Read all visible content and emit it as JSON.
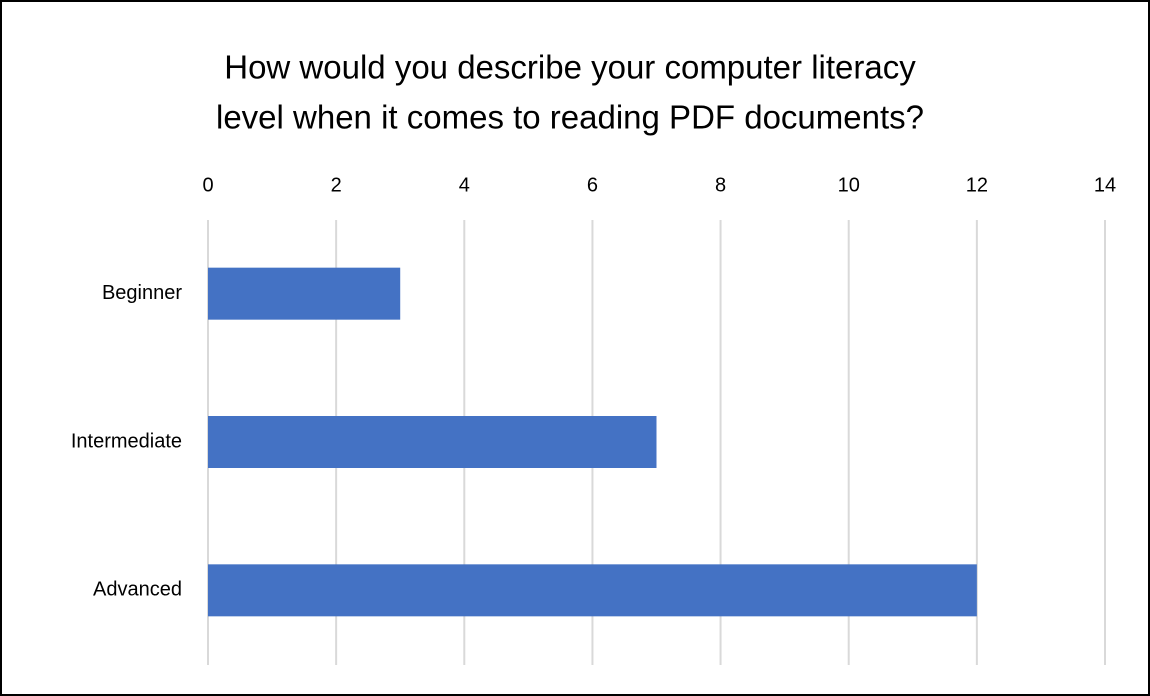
{
  "chart_data": {
    "type": "bar",
    "orientation": "horizontal",
    "title": [
      "How would you describe your computer literacy",
      "level when it comes to reading PDF documents?"
    ],
    "categories": [
      "Beginner",
      "Intermediate",
      "Advanced"
    ],
    "values": [
      3,
      7,
      12
    ],
    "color": "#4472c4",
    "xlim": [
      0,
      14
    ],
    "xticks": [
      0,
      2,
      4,
      6,
      8,
      10,
      12,
      14
    ],
    "grid": true
  }
}
